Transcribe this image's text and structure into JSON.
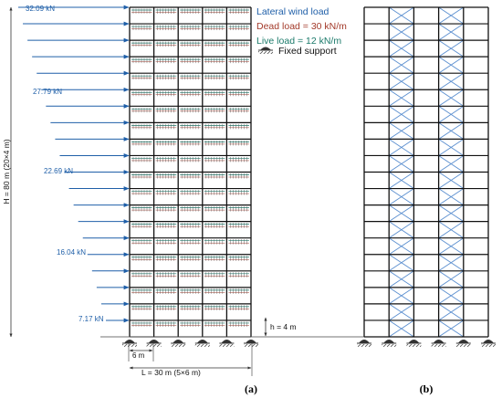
{
  "panel_a": {
    "caption": "(a)",
    "wind_labels": [
      "32.09 kN",
      "27.79 kN",
      "22.69 kN",
      "16.04 kN",
      "7.17 kN"
    ],
    "height_label": "H = 80 m (20×4 m)",
    "storey_label": "h = 4 m",
    "bay_label": "6 m",
    "span_label": "L = 30 m (5×6 m)"
  },
  "panel_b": {
    "caption": "(b)"
  },
  "legend": {
    "wind": "Lateral wind load",
    "dead": "Dead load = 30 kN/m",
    "live": "Live load = 12 kN/m",
    "support": "Fixed support"
  },
  "colors": {
    "wind": "#1f5fa8",
    "dead": "#a33a2a",
    "live": "#1b7a6a",
    "frame": "#111111",
    "bracing": "#5b8fd0",
    "dim": "#333333"
  },
  "frame": {
    "stories": 20,
    "bays": 5
  }
}
